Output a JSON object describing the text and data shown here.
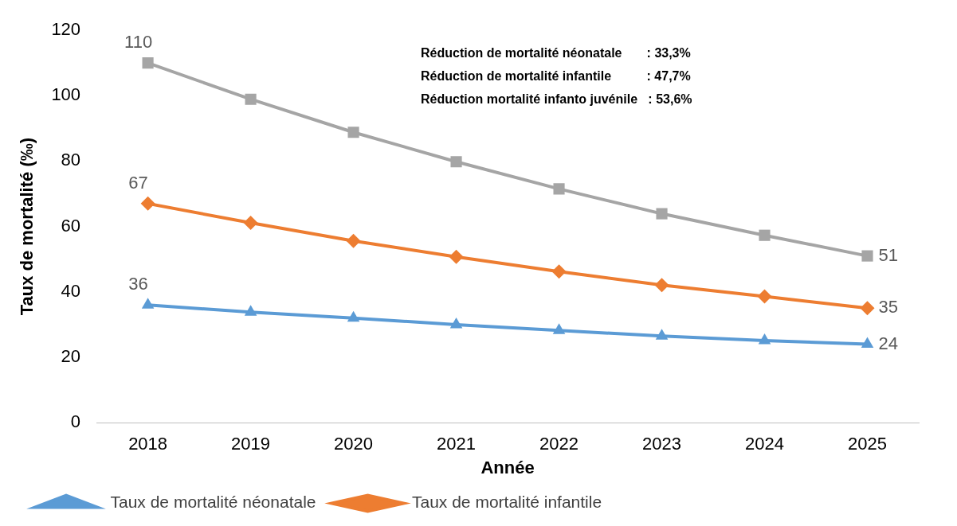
{
  "chart_data": {
    "type": "line",
    "xlabel": "Année",
    "ylabel": "Taux de mortalité (‰)",
    "categories": [
      "2018",
      "2019",
      "2020",
      "2021",
      "2022",
      "2023",
      "2024",
      "2025"
    ],
    "ylim": [
      0,
      120
    ],
    "yticks": [
      0,
      20,
      40,
      60,
      80,
      100,
      120
    ],
    "grid": false,
    "legend": "bottom",
    "series": [
      {
        "name": "Taux de mortalité néonatale",
        "color": "#5b9bd5",
        "marker": "triangle",
        "values": [
          36,
          33.8,
          32,
          30,
          28.2,
          26.5,
          25.1,
          24
        ],
        "value_labels": [
          "36",
          null,
          null,
          null,
          null,
          null,
          null,
          "24"
        ]
      },
      {
        "name": "Taux de mortalité infantile",
        "color": "#ed7d31",
        "marker": "diamond",
        "values": [
          67,
          61.1,
          55.6,
          50.7,
          46.2,
          42.1,
          38.6,
          35
        ],
        "value_labels": [
          "67",
          null,
          null,
          null,
          null,
          null,
          null,
          "35"
        ]
      },
      {
        "color": "#a5a5a5",
        "marker": "square",
        "values": [
          110,
          98.9,
          88.8,
          79.8,
          71.5,
          63.9,
          57.3,
          51
        ],
        "value_labels": [
          "110",
          null,
          null,
          null,
          null,
          null,
          null,
          "51"
        ]
      }
    ],
    "annotations": [
      "Réduction de mortalité néonatale       : 33,3%",
      "Réduction de mortalité infantile          : 47,7%",
      "Réduction mortalité infanto juvénile   : 53,6%"
    ]
  }
}
